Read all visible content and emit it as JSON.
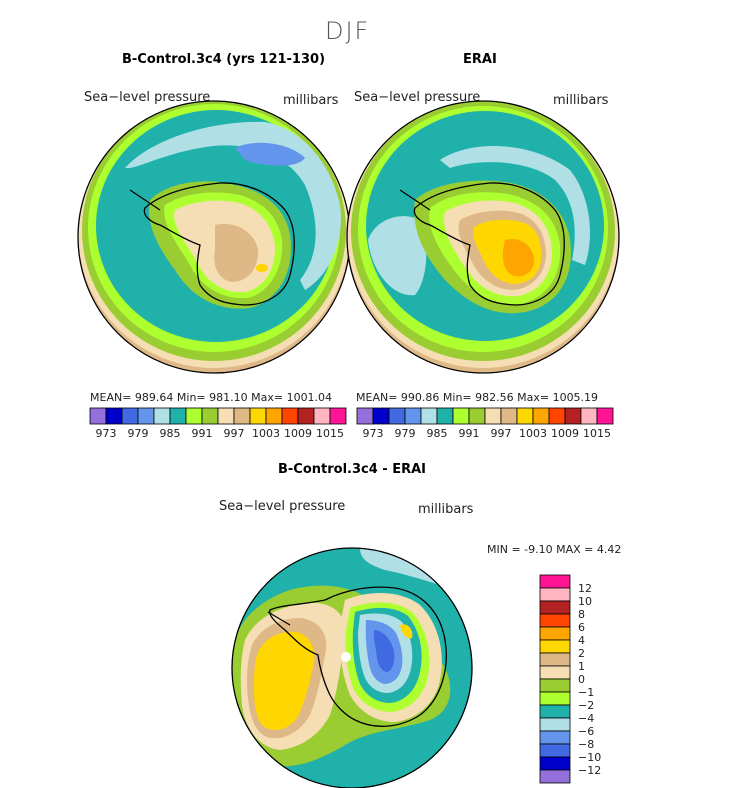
{
  "page_title": "DJF",
  "colors": {
    "c973": "#9370db",
    "c976": "#0000cd",
    "c979": "#4169e1",
    "c982": "#6495ed",
    "c985": "#b0e0e6",
    "c988": "#20b2aa",
    "c991": "#adff2f",
    "c994": "#9acd32",
    "c997": "#f5deb3",
    "c1000": "#deb887",
    "c1003": "#ffd700",
    "c1006": "#ffa500",
    "c1009": "#ff4500",
    "c1012": "#b22222",
    "c1015": "#ffb6c1",
    "c1018": "#ff1493"
  },
  "panels": [
    {
      "title": "B-Control.3c4 (yrs 121-130)",
      "var_label": "Sea−level pressure",
      "units": "millibars",
      "stats": "MEAN= 989.64   Min= 981.10   Max= 1001.04"
    },
    {
      "title": "ERAI",
      "var_label": "Sea−level pressure",
      "units": "millibars",
      "stats": "MEAN= 990.86   Min= 982.56   Max= 1005.19"
    }
  ],
  "diff_panel": {
    "title": "B-Control.3c4 - ERAI",
    "var_label": "Sea−level pressure",
    "units": "millibars",
    "stats": "MIN =   -9.10 MAX =    4.42"
  },
  "chart_data": [
    {
      "type": "heatmap",
      "title": "B-Control.3c4 (yrs 121-130)",
      "projection": "south-polar-stereographic",
      "variable": "Sea-level pressure",
      "units": "millibars",
      "mean": 989.64,
      "min": 981.1,
      "max": 1001.04,
      "colorbar_ticks": [
        973,
        979,
        985,
        991,
        997,
        1003,
        1009,
        1015
      ],
      "colorbar_levels": [
        973,
        976,
        979,
        982,
        985,
        988,
        991,
        994,
        997,
        1000,
        1003,
        1006,
        1009,
        1012,
        1015
      ]
    },
    {
      "type": "heatmap",
      "title": "ERAI",
      "projection": "south-polar-stereographic",
      "variable": "Sea-level pressure",
      "units": "millibars",
      "mean": 990.86,
      "min": 982.56,
      "max": 1005.19,
      "colorbar_ticks": [
        973,
        979,
        985,
        991,
        997,
        1003,
        1009,
        1015
      ],
      "colorbar_levels": [
        973,
        976,
        979,
        982,
        985,
        988,
        991,
        994,
        997,
        1000,
        1003,
        1006,
        1009,
        1012,
        1015
      ]
    },
    {
      "type": "heatmap",
      "title": "B-Control.3c4 - ERAI",
      "projection": "south-polar-stereographic",
      "variable": "Sea-level pressure",
      "units": "millibars",
      "min": -9.1,
      "max": 4.42,
      "colorbar_ticks": [
        "12",
        "10",
        "8",
        "6",
        "4",
        "2",
        "1",
        "0",
        "−1",
        "−2",
        "−4",
        "−6",
        "−8",
        "−10",
        "−12"
      ],
      "colorbar_colors": [
        "#ff1493",
        "#ffb6c1",
        "#b22222",
        "#ff4500",
        "#ffa500",
        "#ffd700",
        "#deb887",
        "#f5deb3",
        "#9acd32",
        "#adff2f",
        "#20b2aa",
        "#b0e0e6",
        "#6495ed",
        "#4169e1",
        "#0000cd",
        "#9370db"
      ]
    }
  ]
}
